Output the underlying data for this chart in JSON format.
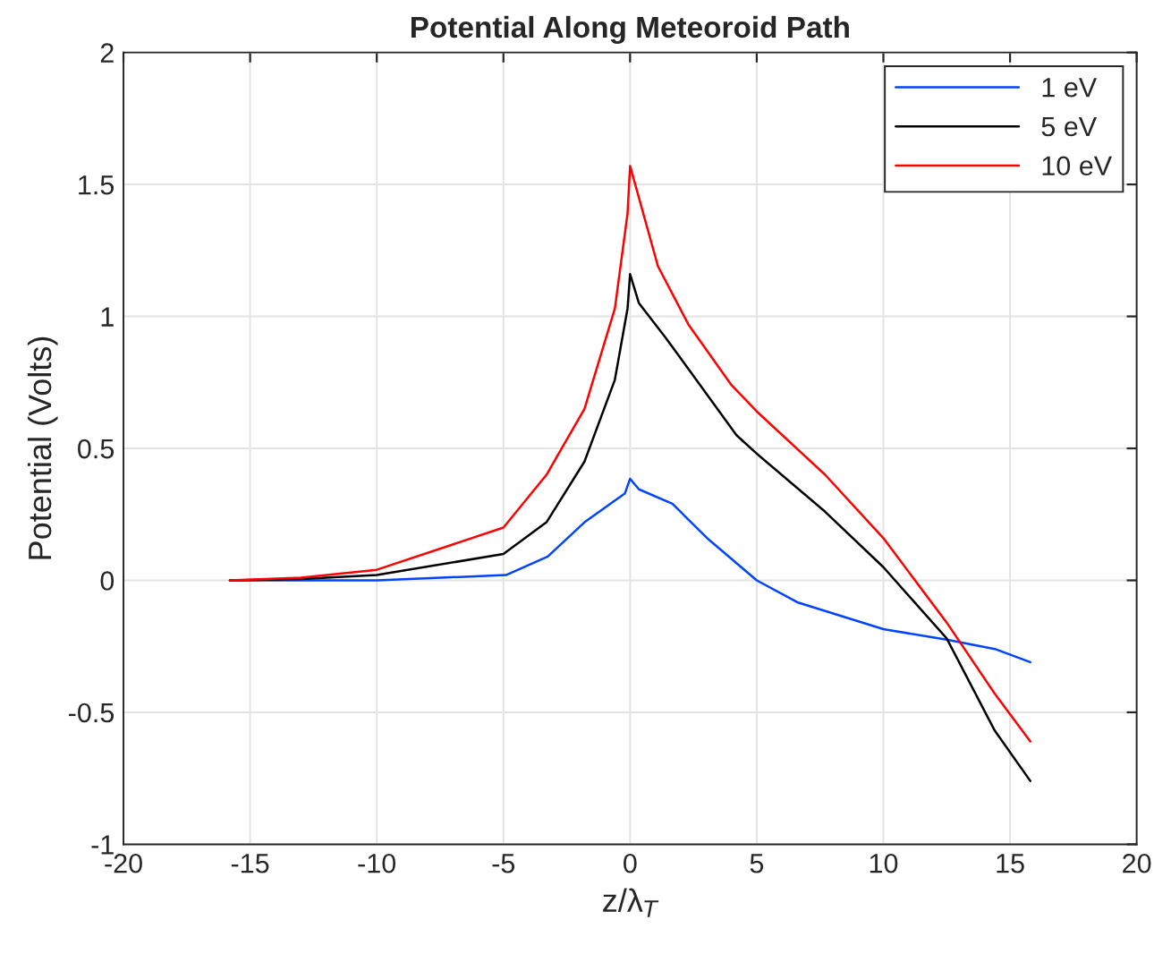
{
  "chart_data": {
    "type": "line",
    "title": "Potential Along Meteoroid Path",
    "xlabel": "z/λ$_{T}$",
    "ylabel": "Potential (Volts)",
    "xlim": [
      -20,
      20
    ],
    "xticks": [
      -20,
      -15,
      -10,
      -5,
      0,
      5,
      10,
      15,
      20
    ],
    "ylim": [
      -1,
      2
    ],
    "yticks": [
      -1,
      -0.5,
      0,
      0.5,
      1,
      1.5,
      2
    ],
    "grid": true,
    "legend": "top right",
    "line_style": "solid",
    "marker": "none",
    "series": [
      {
        "name": "1 eV",
        "color": "#0044ff",
        "x": [
          -15.8,
          -13,
          -10,
          -4.9,
          -3.25,
          -1.8,
          -0.2,
          0,
          0.35,
          1.67,
          3.1,
          5,
          6.6,
          10,
          12.5,
          14.4,
          15.8
        ],
        "values": [
          0,
          0,
          0,
          0.02,
          0.09,
          0.22,
          0.33,
          0.385,
          0.345,
          0.29,
          0.155,
          0,
          -0.083,
          -0.185,
          -0.225,
          -0.26,
          -0.31
        ]
      },
      {
        "name": "5 eV",
        "color": "#000000",
        "x": [
          -15.8,
          -13,
          -10,
          -5,
          -3.3,
          -1.8,
          -0.6,
          -0.1,
          0,
          0.35,
          1.4,
          4.2,
          5,
          7.7,
          10,
          12.5,
          14.4,
          15.8
        ],
        "values": [
          0,
          0.005,
          0.02,
          0.1,
          0.22,
          0.45,
          0.76,
          1.03,
          1.16,
          1.05,
          0.92,
          0.55,
          0.48,
          0.26,
          0.05,
          -0.22,
          -0.57,
          -0.76
        ]
      },
      {
        "name": "10 eV",
        "color": "#ff0000",
        "x": [
          -15.8,
          -13,
          -10,
          -5,
          -3.3,
          -1.8,
          -0.6,
          -0.1,
          0,
          1.1,
          2.3,
          4,
          5,
          7.7,
          10,
          12.5,
          14.4,
          15.8
        ],
        "values": [
          0,
          0.01,
          0.04,
          0.2,
          0.4,
          0.65,
          1.03,
          1.39,
          1.57,
          1.19,
          0.97,
          0.74,
          0.64,
          0.4,
          0.16,
          -0.16,
          -0.43,
          -0.61
        ]
      }
    ]
  }
}
